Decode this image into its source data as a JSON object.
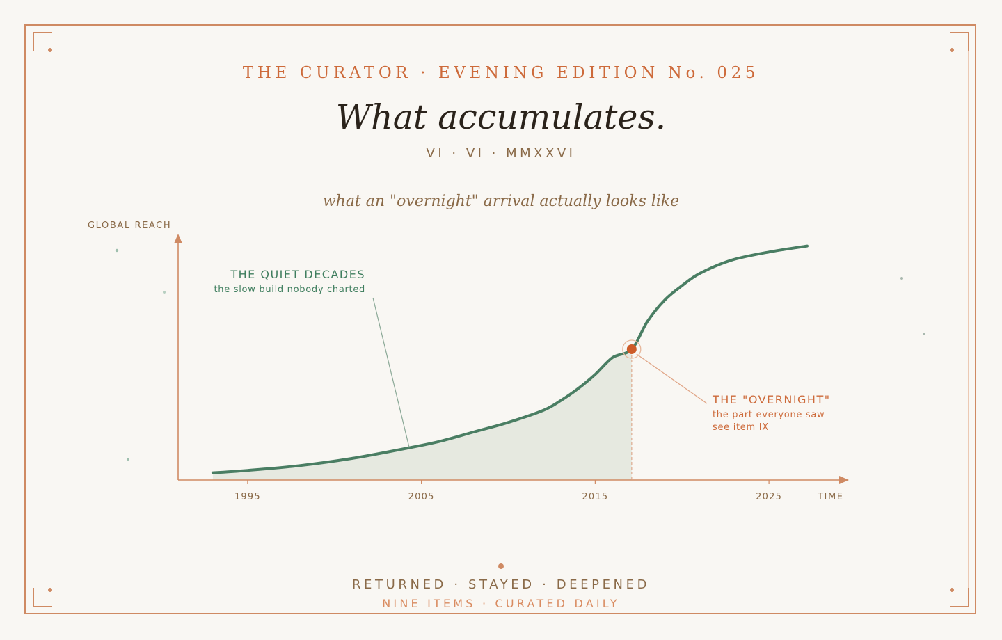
{
  "masthead": "THE CURATOR · EVENING EDITION No. 025",
  "headline": "What accumulates.",
  "dateline": "VI · VI · MMXXVI",
  "footer": {
    "line1": "RETURNED · STAYED · DEEPENED",
    "line2": "NINE ITEMS · CURATED DAILY"
  },
  "colors": {
    "accent": "#cd6a3a",
    "curve": "#4a7e63",
    "fill": "#e6e9e0",
    "ink": "#2b231b",
    "muted": "#8a6a48",
    "background": "#f9f7f3"
  },
  "chart_data": {
    "type": "area",
    "title": "what an \"overnight\" arrival actually looks like",
    "xlabel": "TIME",
    "ylabel": "GLOBAL REACH",
    "x_ticks": [
      1995,
      2005,
      2015,
      2025
    ],
    "xlim": [
      1991,
      2029
    ],
    "ylim": [
      0,
      100
    ],
    "grid": false,
    "legend": "none",
    "shaded_until": 2017.1,
    "series": [
      {
        "x": [
          1993,
          1995,
          1998,
          2001,
          2004,
          2006,
          2008,
          2010,
          2012,
          2013,
          2014,
          2015,
          2016,
          2017.1,
          2018,
          2019,
          2020,
          2021,
          2022.8,
          2025,
          2027.2
        ],
        "y": [
          3,
          4,
          6,
          9,
          13,
          16,
          20,
          24,
          29,
          33,
          38,
          44,
          51,
          54.5,
          66,
          75,
          81,
          86,
          91.5,
          95,
          97.5
        ]
      }
    ],
    "highlight": {
      "x": 2017.1,
      "y": 54.5
    },
    "annotations": [
      {
        "title": "THE QUIET DECADES",
        "text": "the slow build nobody charted",
        "x": 2004.3,
        "y": 13.5
      },
      {
        "title": "THE \"OVERNIGHT\"",
        "text": "the part everyone saw",
        "text2": "see item IX",
        "x": 2017.1,
        "y": 54.5
      }
    ]
  }
}
